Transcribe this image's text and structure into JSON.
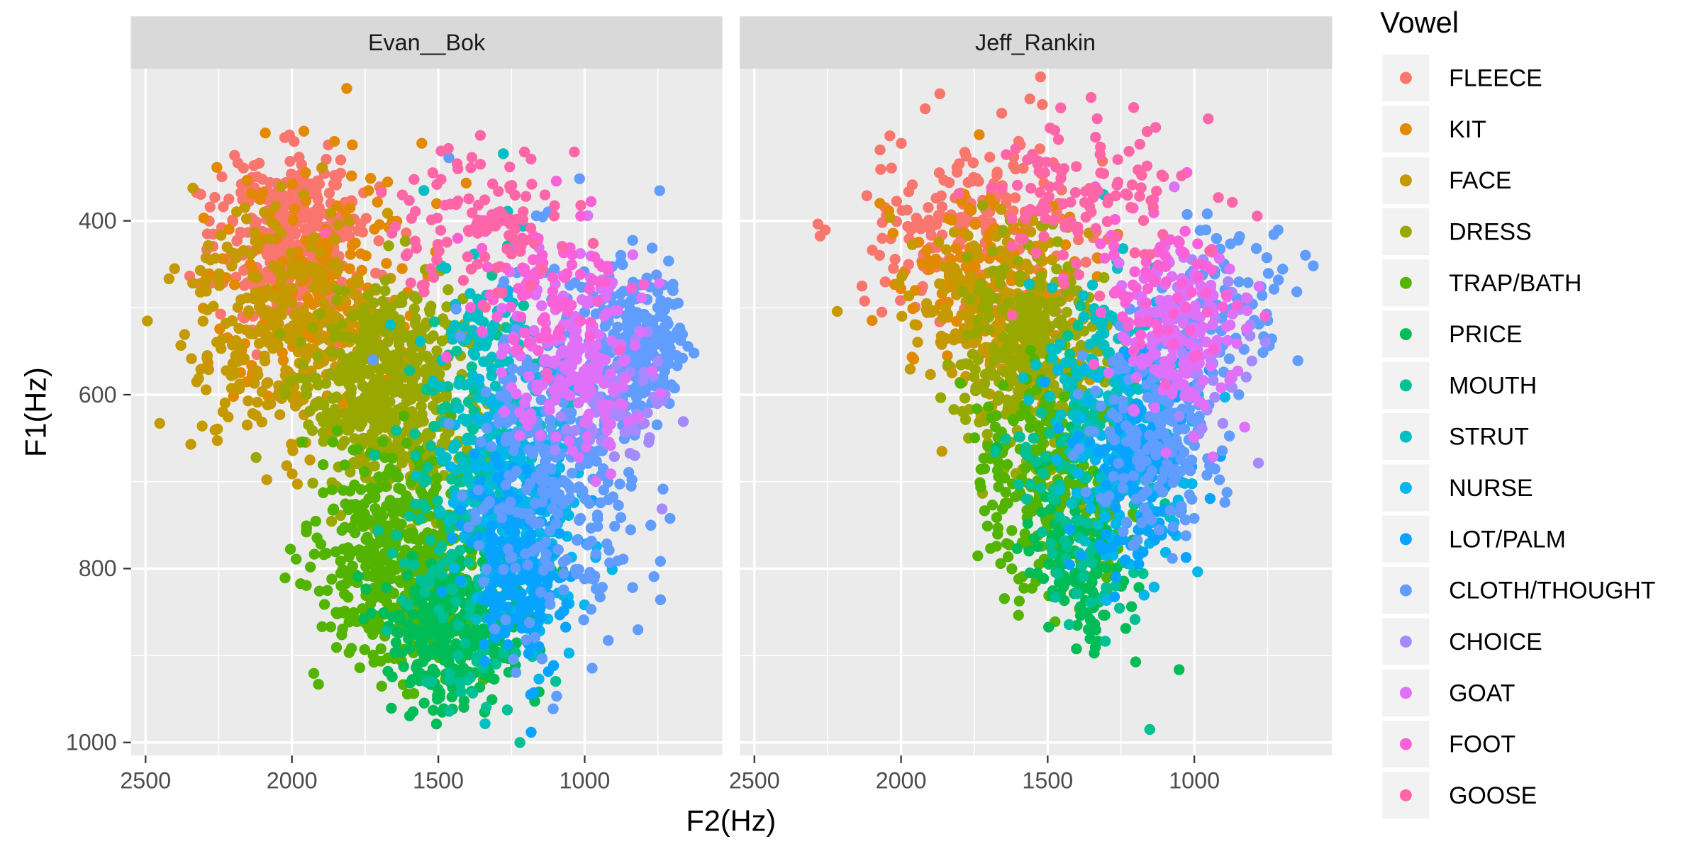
{
  "chart_data": {
    "type": "scatter",
    "facet_variable": "speaker",
    "facets": [
      "Evan__Bok",
      "Jeff_Rankin"
    ],
    "xlabel": "F2(Hz)",
    "ylabel": "F1(Hz)",
    "x_reversed": true,
    "y_reversed": true,
    "xlim": [
      2550,
      530
    ],
    "ylim": [
      1015,
      225
    ],
    "x_ticks": [
      2500,
      2000,
      1500,
      1000
    ],
    "y_ticks": [
      400,
      600,
      800,
      1000
    ],
    "x_tick_labels": [
      "2500",
      "2000",
      "1500",
      "1000"
    ],
    "y_tick_labels": [
      "400",
      "600",
      "800",
      "1000"
    ],
    "grid": true,
    "legend": {
      "title": "Vowel",
      "position": "right",
      "entries": [
        "FLEECE",
        "KIT",
        "FACE",
        "DRESS",
        "TRAP/BATH",
        "PRICE",
        "MOUTH",
        "STRUT",
        "NURSE",
        "LOT/PALM",
        "CLOTH/THOUGHT",
        "CHOICE",
        "GOAT",
        "FOOT",
        "GOOSE"
      ]
    },
    "series_colors": {
      "FLEECE": "#F8766D",
      "KIT": "#E38900",
      "FACE": "#C49A00",
      "DRESS": "#99A800",
      "TRAP/BATH": "#53B400",
      "PRICE": "#00BC56",
      "MOUTH": "#00C094",
      "STRUT": "#00BFC4",
      "NURSE": "#00B6EB",
      "LOT/PALM": "#06A4FF",
      "CLOTH/THOUGHT": "#619CFF",
      "CHOICE": "#A58AFF",
      "GOAT": "#DF70F8",
      "FOOT": "#FB61D7",
      "GOOSE": "#FF66A8"
    },
    "series": [
      {
        "name": "FLEECE",
        "facet": "Evan__Bok",
        "n": 420,
        "f2_mean": 2000,
        "f2_sd": 120,
        "f1_mean": 420,
        "f1_sd": 45
      },
      {
        "name": "FLEECE",
        "facet": "Jeff_Rankin",
        "n": 200,
        "f2_mean": 1760,
        "f2_sd": 200,
        "f1_mean": 400,
        "f1_sd": 55
      },
      {
        "name": "KIT",
        "facet": "Evan__Bok",
        "n": 200,
        "f2_mean": 1880,
        "f2_sd": 200,
        "f1_mean": 480,
        "f1_sd": 70
      },
      {
        "name": "KIT",
        "facet": "Jeff_Rankin",
        "n": 140,
        "f2_mean": 1720,
        "f2_sd": 180,
        "f1_mean": 470,
        "f1_sd": 50
      },
      {
        "name": "FACE",
        "facet": "Evan__Bok",
        "n": 330,
        "f2_mean": 2030,
        "f2_sd": 170,
        "f1_mean": 520,
        "f1_sd": 65
      },
      {
        "name": "FACE",
        "facet": "Jeff_Rankin",
        "n": 230,
        "f2_mean": 1680,
        "f2_sd": 150,
        "f1_mean": 500,
        "f1_sd": 50
      },
      {
        "name": "DRESS",
        "facet": "Evan__Bok",
        "n": 520,
        "f2_mean": 1660,
        "f2_sd": 140,
        "f1_mean": 600,
        "f1_sd": 60
      },
      {
        "name": "DRESS",
        "facet": "Jeff_Rankin",
        "n": 320,
        "f2_mean": 1560,
        "f2_sd": 110,
        "f1_mean": 550,
        "f1_sd": 60
      },
      {
        "name": "TRAP/BATH",
        "facet": "Evan__Bok",
        "n": 460,
        "f2_mean": 1640,
        "f2_sd": 140,
        "f1_mean": 790,
        "f1_sd": 60
      },
      {
        "name": "TRAP/BATH",
        "facet": "Jeff_Rankin",
        "n": 300,
        "f2_mean": 1490,
        "f2_sd": 130,
        "f1_mean": 700,
        "f1_sd": 65
      },
      {
        "name": "PRICE",
        "facet": "Evan__Bok",
        "n": 320,
        "f2_mean": 1440,
        "f2_sd": 110,
        "f1_mean": 870,
        "f1_sd": 45
      },
      {
        "name": "PRICE",
        "facet": "Jeff_Rankin",
        "n": 140,
        "f2_mean": 1390,
        "f2_sd": 100,
        "f1_mean": 790,
        "f1_sd": 60
      },
      {
        "name": "MOUTH",
        "facet": "Evan__Bok",
        "n": 200,
        "f2_mean": 1390,
        "f2_sd": 120,
        "f1_mean": 760,
        "f1_sd": 110
      },
      {
        "name": "MOUTH",
        "facet": "Jeff_Rankin",
        "n": 120,
        "f2_mean": 1370,
        "f2_sd": 110,
        "f1_mean": 700,
        "f1_sd": 80
      },
      {
        "name": "STRUT",
        "facet": "Evan__Bok",
        "n": 180,
        "f2_mean": 1300,
        "f2_sd": 110,
        "f1_mean": 620,
        "f1_sd": 100
      },
      {
        "name": "STRUT",
        "facet": "Jeff_Rankin",
        "n": 130,
        "f2_mean": 1300,
        "f2_sd": 110,
        "f1_mean": 600,
        "f1_sd": 75
      },
      {
        "name": "NURSE",
        "facet": "Evan__Bok",
        "n": 220,
        "f2_mean": 1200,
        "f2_sd": 100,
        "f1_mean": 730,
        "f1_sd": 80
      },
      {
        "name": "NURSE",
        "facet": "Jeff_Rankin",
        "n": 150,
        "f2_mean": 1210,
        "f2_sd": 110,
        "f1_mean": 660,
        "f1_sd": 65
      },
      {
        "name": "LOT/PALM",
        "facet": "Evan__Bok",
        "n": 200,
        "f2_mean": 1220,
        "f2_sd": 90,
        "f1_mean": 790,
        "f1_sd": 60
      },
      {
        "name": "LOT/PALM",
        "facet": "Jeff_Rankin",
        "n": 140,
        "f2_mean": 1190,
        "f2_sd": 100,
        "f1_mean": 680,
        "f1_sd": 55
      },
      {
        "name": "CLOTH/THOUGHT",
        "facet": "Evan__Bok",
        "n": 340,
        "f2_mean": 1080,
        "f2_sd": 150,
        "f1_mean": 660,
        "f1_sd": 110
      },
      {
        "name": "CLOTH/THOUGHT",
        "facet": "Jeff_Rankin",
        "n": 190,
        "f2_mean": 1130,
        "f2_sd": 110,
        "f1_mean": 640,
        "f1_sd": 60
      },
      {
        "name": "CLOTH/THOUGHT",
        "facet": "Evan__Bok",
        "n": 230,
        "f2_mean": 820,
        "f2_sd": 80,
        "f1_mean": 540,
        "f1_sd": 40
      },
      {
        "name": "CLOTH/THOUGHT",
        "facet": "Jeff_Rankin",
        "n": 70,
        "f2_mean": 850,
        "f2_sd": 110,
        "f1_mean": 490,
        "f1_sd": 45
      },
      {
        "name": "CHOICE",
        "facet": "Evan__Bok",
        "n": 60,
        "f2_mean": 860,
        "f2_sd": 100,
        "f1_mean": 610,
        "f1_sd": 40
      },
      {
        "name": "CHOICE",
        "facet": "Jeff_Rankin",
        "n": 50,
        "f2_mean": 930,
        "f2_sd": 100,
        "f1_mean": 550,
        "f1_sd": 45
      },
      {
        "name": "GOAT",
        "facet": "Evan__Bok",
        "n": 190,
        "f2_mean": 1030,
        "f2_sd": 120,
        "f1_mean": 560,
        "f1_sd": 50
      },
      {
        "name": "GOAT",
        "facet": "Jeff_Rankin",
        "n": 170,
        "f2_mean": 1060,
        "f2_sd": 110,
        "f1_mean": 530,
        "f1_sd": 50
      },
      {
        "name": "FOOT",
        "facet": "Evan__Bok",
        "n": 90,
        "f2_mean": 1150,
        "f2_sd": 130,
        "f1_mean": 470,
        "f1_sd": 50
      },
      {
        "name": "FOOT",
        "facet": "Jeff_Rankin",
        "n": 80,
        "f2_mean": 1120,
        "f2_sd": 120,
        "f1_mean": 470,
        "f1_sd": 45
      },
      {
        "name": "GOOSE",
        "facet": "Evan__Bok",
        "n": 110,
        "f2_mean": 1350,
        "f2_sd": 150,
        "f1_mean": 400,
        "f1_sd": 40
      },
      {
        "name": "GOOSE",
        "facet": "Jeff_Rankin",
        "n": 110,
        "f2_mean": 1380,
        "f2_sd": 200,
        "f1_mean": 360,
        "f1_sd": 45
      }
    ]
  }
}
